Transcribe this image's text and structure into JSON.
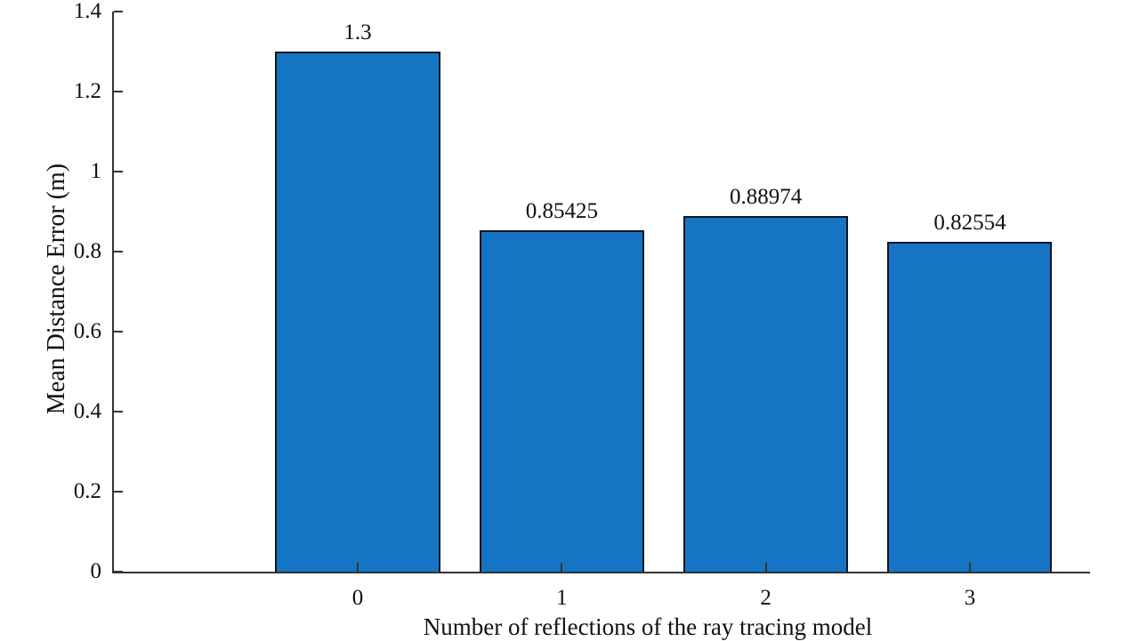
{
  "chart_data": {
    "type": "bar",
    "title": "",
    "xlabel": "Number of reflections of the ray tracing model",
    "ylabel": "Mean Distance Error (m)",
    "categories": [
      "0",
      "1",
      "2",
      "3"
    ],
    "values": [
      1.3,
      0.85425,
      0.88974,
      0.82554
    ],
    "value_labels": [
      "1.3",
      "0.85425",
      "0.88974",
      "0.82554"
    ],
    "ylim": [
      0,
      1.4
    ],
    "yticks": [
      0,
      0.2,
      0.4,
      0.6,
      0.8,
      1,
      1.2,
      1.4
    ],
    "ytick_labels": [
      "0",
      "0.2",
      "0.4",
      "0.6",
      "0.8",
      "1",
      "1.2",
      "1.4"
    ],
    "grid": false,
    "legend": null,
    "tick_direction": "in",
    "spines": [
      "left",
      "bottom"
    ],
    "colors": {
      "bar_fill": "#1575c4",
      "bar_edge": "#10151d",
      "axis": "#333333",
      "text": "#111111"
    }
  }
}
